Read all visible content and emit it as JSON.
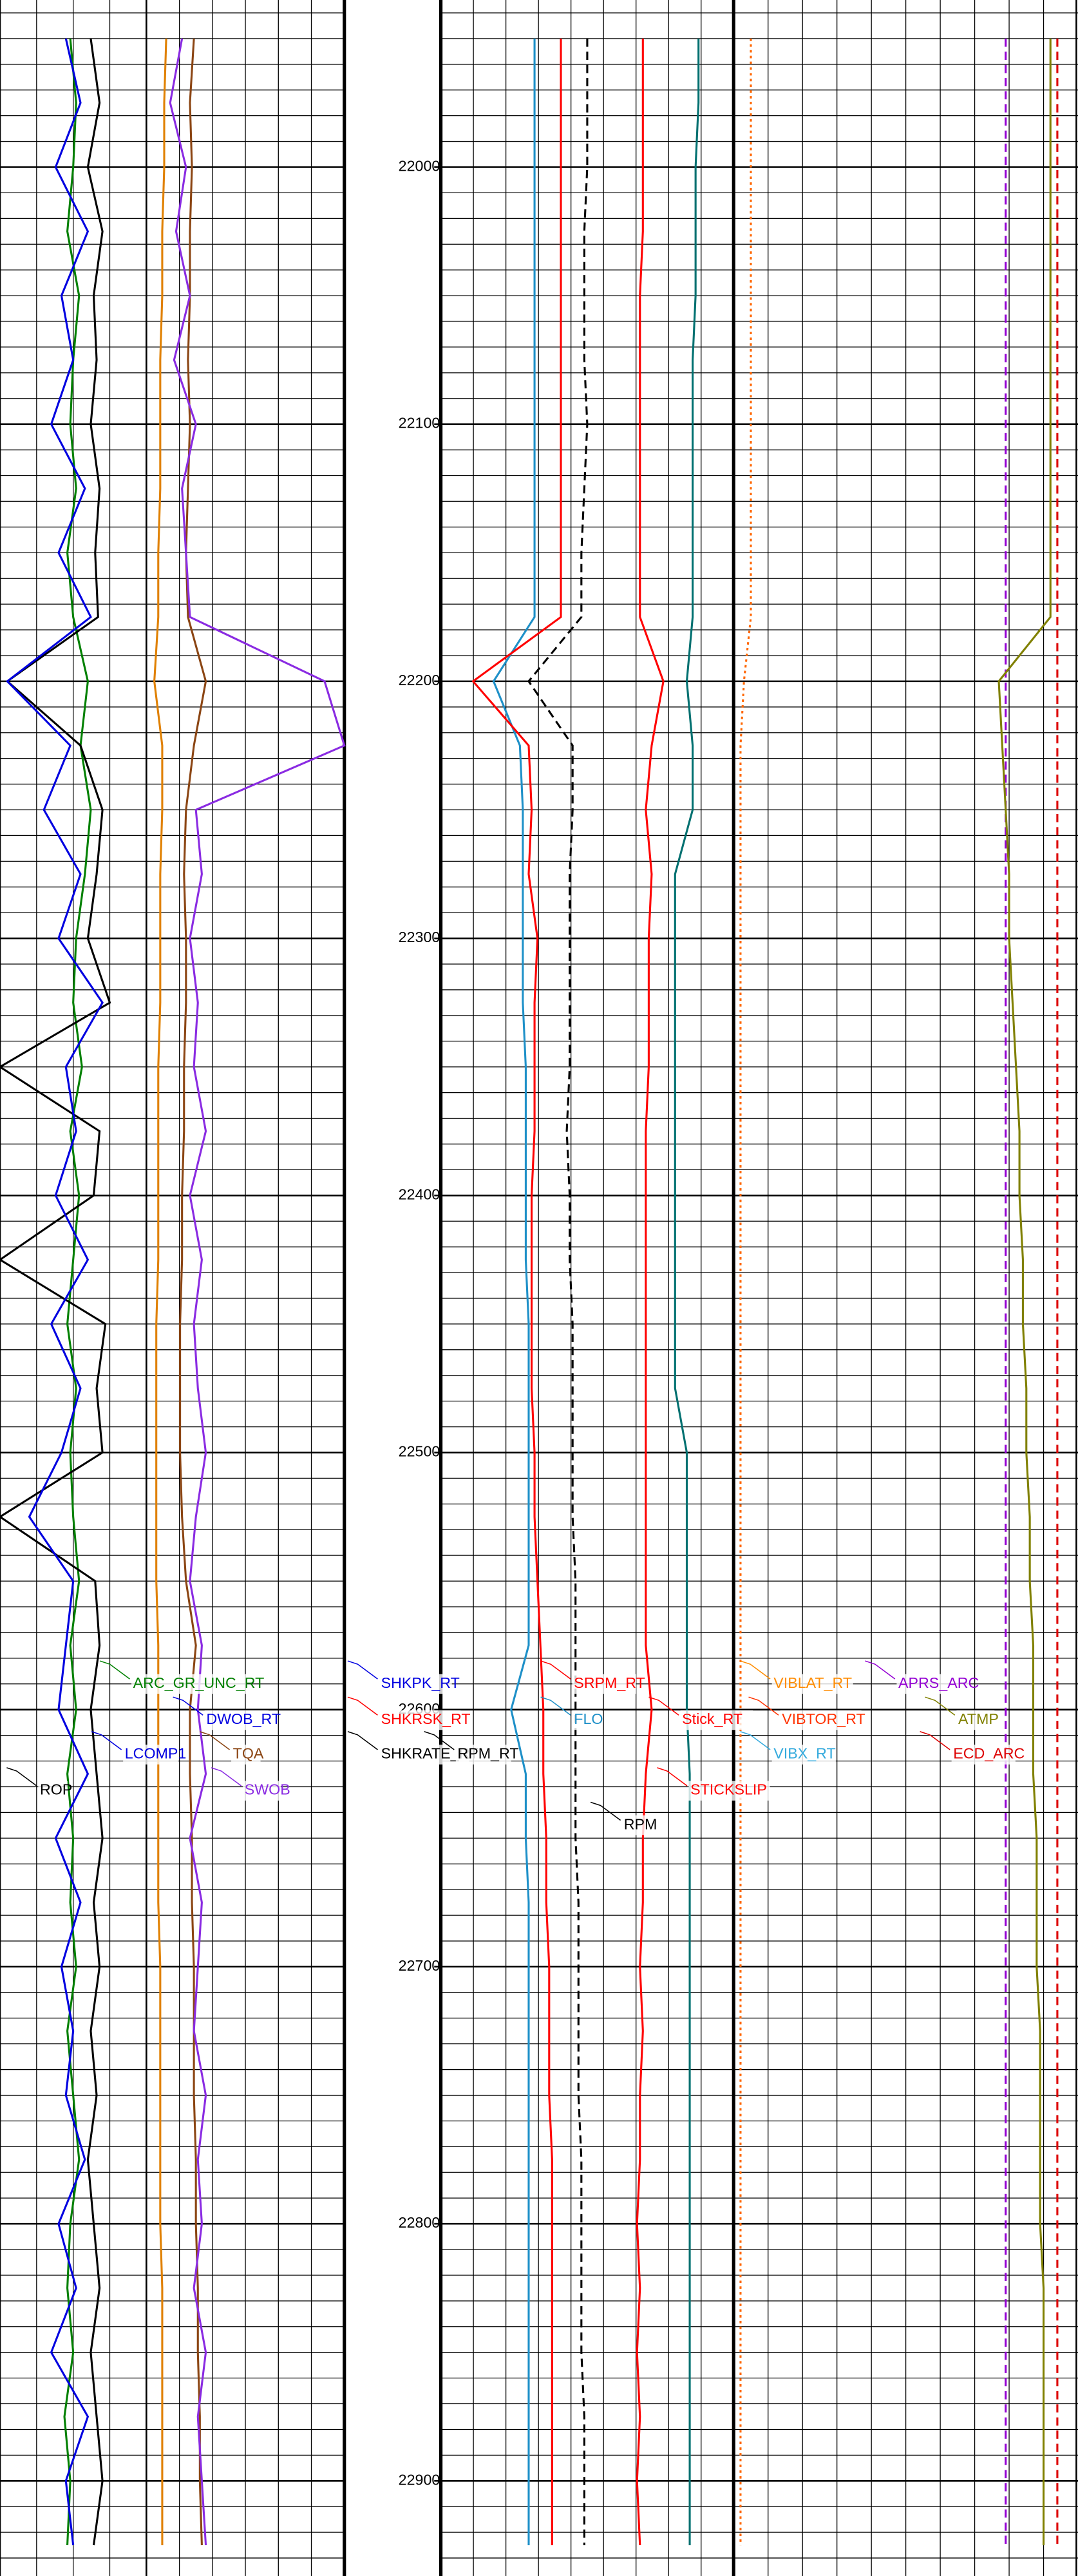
{
  "chart_data": {
    "type": "line",
    "ylim": [
      21935,
      22937
    ],
    "yticks": [
      22000,
      22100,
      22200,
      22300,
      22400,
      22500,
      22600,
      22700,
      22800,
      22900
    ],
    "grid": true,
    "grid_step": 10,
    "depths": [
      21950,
      21975,
      22000,
      22025,
      22050,
      22075,
      22100,
      22125,
      22150,
      22175,
      22200,
      22225,
      22250,
      22275,
      22300,
      22325,
      22350,
      22375,
      22400,
      22425,
      22450,
      22475,
      22500,
      22525,
      22550,
      22575,
      22600,
      22625,
      22650,
      22675,
      22700,
      22725,
      22750,
      22775,
      22800,
      22825,
      22850,
      22875,
      22900,
      22925
    ],
    "tracks": [
      {
        "xlim": [
          0,
          100
        ],
        "series": [
          {
            "color": "#008000",
            "style": "solid",
            "values": [
              48,
              52,
              50,
              46,
              54,
              50,
              48,
              52,
              46,
              50,
              60,
              55,
              62,
              58,
              52,
              50,
              56,
              48,
              54,
              50,
              46,
              52,
              48,
              50,
              54,
              48,
              52,
              46,
              50,
              48,
              52,
              46,
              50,
              54,
              48,
              46,
              50,
              44,
              48,
              46
            ]
          },
          {
            "color": "#000000",
            "style": "solid",
            "values": [
              62,
              68,
              60,
              70,
              64,
              66,
              62,
              68,
              65,
              67,
              5,
              55,
              70,
              66,
              60,
              75,
              0,
              68,
              64,
              0,
              72,
              66,
              70,
              0,
              65,
              68,
              62,
              66,
              70,
              64,
              68,
              62,
              66,
              60,
              64,
              68,
              62,
              66,
              70,
              64
            ]
          },
          {
            "color": "#0000e0",
            "style": "solid",
            "values": [
              45,
              55,
              38,
              60,
              42,
              50,
              35,
              58,
              40,
              62,
              5,
              48,
              30,
              55,
              40,
              70,
              45,
              52,
              38,
              60,
              35,
              55,
              42,
              20,
              50,
              45,
              40,
              60,
              38,
              55,
              42,
              50,
              45,
              58,
              40,
              52,
              35,
              60,
              45,
              50
            ]
          }
        ]
      },
      {
        "xlim": [
          0,
          100
        ],
        "series": [
          {
            "color": "#e08000",
            "style": "solid",
            "values": [
              10,
              9,
              9,
              8,
              8,
              7,
              7,
              7,
              6,
              6,
              4,
              8,
              8,
              7,
              7,
              7,
              6,
              6,
              6,
              6,
              5,
              5,
              5,
              5,
              5,
              6,
              6,
              6,
              6,
              6,
              7,
              7,
              7,
              7,
              7,
              8,
              8,
              8,
              8,
              8
            ]
          },
          {
            "color": "#8b4513",
            "style": "solid",
            "values": [
              24,
              22,
              23,
              22,
              22,
              21,
              22,
              21,
              20,
              21,
              30,
              24,
              20,
              19,
              20,
              20,
              19,
              19,
              18,
              18,
              17,
              17,
              17,
              18,
              20,
              25,
              22,
              22,
              23,
              23,
              24,
              24,
              24,
              25,
              25,
              26,
              26,
              27,
              27,
              28
            ]
          },
          {
            "color": "#8a2be2",
            "style": "solid",
            "values": [
              18,
              12,
              20,
              15,
              22,
              14,
              25,
              18,
              20,
              22,
              90,
              100,
              25,
              28,
              22,
              26,
              24,
              30,
              22,
              28,
              24,
              26,
              30,
              25,
              22,
              28,
              26,
              30,
              22,
              28,
              26,
              24,
              30,
              26,
              28,
              24,
              30,
              26,
              28,
              30
            ]
          }
        ]
      },
      {
        "xlim": [
          0,
          100
        ],
        "series": [
          {
            "color": "#1e90c8",
            "style": "solid",
            "values": [
              32,
              32,
              32,
              32,
              32,
              32,
              32,
              32,
              32,
              32,
              18,
              27,
              28,
              28,
              28,
              28,
              29,
              29,
              29,
              29,
              30,
              30,
              30,
              30,
              30,
              30,
              24,
              29,
              29,
              30,
              30,
              30,
              30,
              30,
              30,
              30,
              30,
              30,
              30,
              30
            ]
          },
          {
            "color": "#ff0000",
            "style": "solid",
            "values": [
              41,
              41,
              41,
              41,
              41,
              41,
              41,
              41,
              41,
              41,
              11,
              30,
              31,
              30,
              33,
              32,
              32,
              32,
              31,
              31,
              31,
              31,
              32,
              32,
              33,
              34,
              35,
              35,
              36,
              36,
              37,
              37,
              37,
              38,
              38,
              38,
              38,
              38,
              38,
              38
            ]
          },
          {
            "color": "#000000",
            "style": "dashed",
            "values": [
              50,
              50,
              50,
              49,
              49,
              49,
              50,
              49,
              48,
              48,
              30,
              45,
              45,
              44,
              44,
              44,
              44,
              43,
              44,
              44,
              45,
              45,
              45,
              45,
              46,
              46,
              46,
              46,
              46,
              47,
              47,
              47,
              47,
              48,
              48,
              48,
              48,
              49,
              49,
              49
            ]
          },
          {
            "color": "#ff0000",
            "style": "solid",
            "values": [
              69,
              69,
              69,
              69,
              68,
              68,
              68,
              68,
              68,
              68,
              76,
              72,
              70,
              72,
              71,
              71,
              71,
              70,
              70,
              70,
              70,
              70,
              70,
              70,
              70,
              70,
              72,
              70,
              69,
              69,
              68,
              69,
              68,
              68,
              67,
              68,
              67,
              68,
              67,
              68
            ]
          },
          {
            "color": "#007070",
            "style": "solid",
            "values": [
              88,
              88,
              87,
              87,
              87,
              86,
              86,
              86,
              86,
              86,
              84,
              86,
              86,
              80,
              80,
              80,
              80,
              80,
              80,
              80,
              80,
              80,
              84,
              84,
              84,
              84,
              84,
              85,
              85,
              85,
              85,
              85,
              85,
              85,
              85,
              85,
              85,
              85,
              85,
              85
            ]
          }
        ]
      },
      {
        "xlim": [
          0,
          100
        ],
        "series": [
          {
            "color": "#ff6600",
            "style": "dotted",
            "values": [
              5,
              5,
              5,
              5,
              5,
              5,
              5,
              5,
              5,
              5,
              3,
              2,
              2,
              2,
              2,
              2,
              2,
              2,
              2,
              2,
              2,
              2,
              2,
              2,
              2,
              2,
              2,
              2,
              2,
              2,
              2,
              2,
              2,
              2,
              2,
              2,
              2,
              2,
              2,
              2
            ]
          },
          {
            "color": "#9400d3",
            "style": "dashed",
            "values": [
              79,
              79,
              79,
              79,
              79,
              79,
              79,
              79,
              79,
              79,
              79,
              79,
              79,
              79,
              79,
              79,
              79,
              79,
              79,
              79,
              79,
              79,
              79,
              79,
              79,
              79,
              79,
              79,
              79,
              79,
              79,
              79,
              79,
              79,
              79,
              79,
              79,
              79,
              79,
              79
            ]
          },
          {
            "color": "#dd0000",
            "style": "dashed",
            "values": [
              94,
              94,
              94,
              94,
              94,
              94,
              94,
              94,
              94,
              94,
              94,
              94,
              94,
              94,
              94,
              94,
              94,
              94,
              94,
              94,
              94,
              94,
              94,
              94,
              94,
              94,
              94,
              94,
              94,
              94,
              94,
              94,
              94,
              94,
              94,
              94,
              94,
              94,
              94,
              94
            ]
          },
          {
            "color": "#808000",
            "style": "solid",
            "values": [
              92,
              92,
              92,
              92,
              92,
              92,
              92,
              92,
              92,
              92,
              77,
              78,
              79,
              80,
              80,
              81,
              82,
              83,
              83,
              84,
              84,
              85,
              85,
              86,
              86,
              87,
              87,
              87,
              88,
              88,
              88,
              89,
              89,
              89,
              89,
              90,
              90,
              90,
              90,
              90
            ]
          }
        ]
      }
    ],
    "annotations": [
      {
        "text": "ARC_GR_UNC_RT",
        "color": "#008000"
      },
      {
        "text": "DWOB_RT",
        "color": "#0000e0"
      },
      {
        "text": "LCOMP1",
        "color": "#0000e0"
      },
      {
        "text": "TQA",
        "color": "#8b4513"
      },
      {
        "text": "ROP",
        "color": "#000000"
      },
      {
        "text": "SWOB",
        "color": "#8a2be2"
      },
      {
        "text": "SHKPK_RT",
        "color": "#0000e0"
      },
      {
        "text": "SHKRSK_RT",
        "color": "#ff0000"
      },
      {
        "text": "SHKRATE_RT",
        "color": "#000000"
      },
      {
        "text": "RPM_RT",
        "color": "#000000"
      },
      {
        "text": "SRPM_RT",
        "color": "#ff0000"
      },
      {
        "text": "FLO",
        "color": "#1e90c8"
      },
      {
        "text": "RPM",
        "color": "#000000"
      },
      {
        "text": "Stick_RT",
        "color": "#ff0000"
      },
      {
        "text": "STICKSLIP",
        "color": "#ff0000"
      },
      {
        "text": "VIBLAT_RT",
        "color": "#ff8c00"
      },
      {
        "text": "VIBTOR_RT",
        "color": "#ff3300"
      },
      {
        "text": "VIBX_RT",
        "color": "#33aadd"
      },
      {
        "text": "APRS_ARC",
        "color": "#9400d3"
      },
      {
        "text": "ATMP",
        "color": "#808000"
      },
      {
        "text": "ECD_ARC",
        "color": "#dd0000"
      }
    ]
  }
}
